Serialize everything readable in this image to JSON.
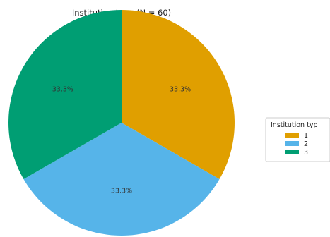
{
  "chart_data": {
    "type": "pie",
    "title": "Institution type (N = 60)",
    "categories": [
      "1",
      "2",
      "3"
    ],
    "values": [
      33.3,
      33.3,
      33.3
    ],
    "labels": [
      "33.3%",
      "33.3%",
      "33.3%"
    ],
    "colors": [
      "#E09F00",
      "#56B4E9",
      "#009E73"
    ],
    "start_angle_deg": 90,
    "direction": "clockwise",
    "legend": {
      "title": "Institution typ",
      "placement": "right",
      "entries": [
        "1",
        "2",
        "3"
      ]
    }
  }
}
